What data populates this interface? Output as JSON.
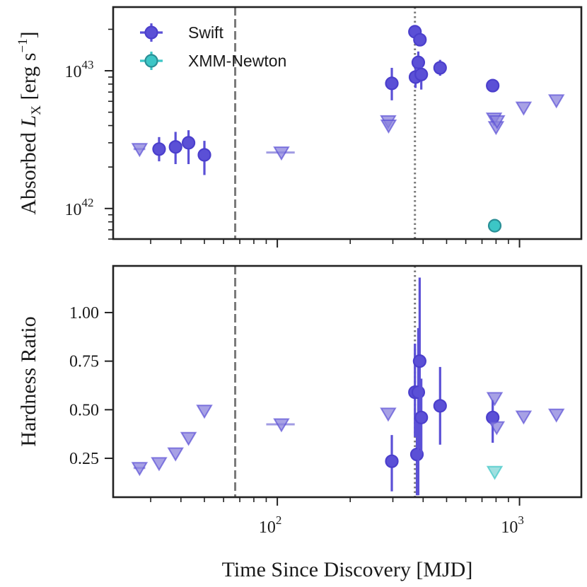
{
  "colors": {
    "swift": "#4b3fcc",
    "swift_fill": "#5b50d6",
    "xmm": "#3cc6c6",
    "xmm_edge": "#2a8f96",
    "limit_fill": "#8a82dc",
    "xmm_limit_fill": "#7fd6d6",
    "axes": "#222222",
    "vline": "#7a7a7a"
  },
  "chart_data": [
    {
      "panel": "top",
      "type": "scatter",
      "ylabel_main": "Absorbed ",
      "ylabel_sym": "L",
      "ylabel_sub": "X",
      "ylabel_unit": " [erg s",
      "ylabel_exp": "−1",
      "ylabel_close": "]",
      "yscale": "log",
      "xscale": "log",
      "xlim": [
        21,
        1800
      ],
      "ylim": [
        6e+41,
        2.9e+43
      ],
      "yticks": [
        {
          "value": 1e+42,
          "base": "10",
          "exp": "42"
        },
        {
          "value": 1e+43,
          "base": "10",
          "exp": "43"
        }
      ],
      "legend": {
        "placement": "top-left",
        "entries": [
          "Swift",
          "XMM-Newton"
        ]
      },
      "vlines": [
        {
          "x": 67,
          "style": "dashed"
        },
        {
          "x": 370,
          "style": "dotted"
        }
      ],
      "series": [
        {
          "name": "Swift",
          "kind": "detection",
          "points": [
            {
              "x": 32.5,
              "y": 2.7e+42,
              "ylo": 2.2e+42,
              "yhi": 3.3e+42
            },
            {
              "x": 38,
              "y": 2.8e+42,
              "ylo": 2.1e+42,
              "yhi": 3.6e+42
            },
            {
              "x": 43,
              "y": 3e+42,
              "ylo": 2.1e+42,
              "yhi": 3.7e+42
            },
            {
              "x": 50,
              "y": 2.45e+42,
              "ylo": 1.75e+42,
              "yhi": 3.1e+42
            },
            {
              "x": 297,
              "y": 8.1e+42,
              "ylo": 6.1e+42,
              "yhi": 1.05e+43
            },
            {
              "x": 370,
              "y": 1.92e+43,
              "ylo": 1.82e+43,
              "yhi": 2.03e+43
            },
            {
              "x": 372,
              "y": 9e+42,
              "ylo": 7.5e+42,
              "yhi": 1.08e+43
            },
            {
              "x": 382,
              "y": 1.15e+43,
              "ylo": 9.5e+42,
              "yhi": 1.38e+43
            },
            {
              "x": 388,
              "y": 1.68e+43,
              "ylo": 1.55e+43,
              "yhi": 1.82e+43
            },
            {
              "x": 393,
              "y": 9.4e+42,
              "ylo": 7.3e+42,
              "yhi": 1.1e+43
            },
            {
              "x": 470,
              "y": 1.05e+43,
              "ylo": 9.2e+42,
              "yhi": 1.2e+43
            },
            {
              "x": 775,
              "y": 7.8e+42,
              "ylo": 7.2e+42,
              "yhi": 8.4e+42
            }
          ]
        },
        {
          "name": "Swift",
          "kind": "upper-limit",
          "points": [
            {
              "x": 27,
              "y": 2.7e+42,
              "xlo": 25.5,
              "xhi": 28.5
            },
            {
              "x": 104,
              "y": 2.55e+42,
              "xlo": 90,
              "xhi": 118
            },
            {
              "x": 287,
              "y": 4.3e+42
            },
            {
              "x": 288,
              "y": 4e+42
            },
            {
              "x": 785,
              "y": 4.5e+42
            },
            {
              "x": 800,
              "y": 3.9e+42
            },
            {
              "x": 808,
              "y": 4.3e+42
            },
            {
              "x": 1040,
              "y": 5.4e+42
            },
            {
              "x": 1420,
              "y": 6.1e+42
            }
          ]
        },
        {
          "name": "XMM-Newton",
          "kind": "detection",
          "points": [
            {
              "x": 790,
              "y": 7.5e+41
            }
          ]
        }
      ]
    },
    {
      "panel": "bottom",
      "type": "scatter",
      "ylabel": "Hardness Ratio",
      "xlabel": "Time Since Discovery [MJD]",
      "xscale": "log",
      "xlim": [
        21,
        1800
      ],
      "ylim": [
        0.05,
        1.24
      ],
      "yticks": [
        {
          "value": 0.25,
          "label": "0.25"
        },
        {
          "value": 0.5,
          "label": "0.50"
        },
        {
          "value": 0.75,
          "label": "0.75"
        },
        {
          "value": 1.0,
          "label": "1.00"
        }
      ],
      "xticks": [
        {
          "value": 100,
          "base": "10",
          "exp": "2"
        },
        {
          "value": 1000,
          "base": "10",
          "exp": "3"
        }
      ],
      "vlines": [
        {
          "x": 67,
          "style": "dashed"
        },
        {
          "x": 370,
          "style": "dotted"
        }
      ],
      "series": [
        {
          "name": "Swift",
          "kind": "detection",
          "points": [
            {
              "x": 297,
              "y": 0.235,
              "ylo": 0.08,
              "yhi": 0.37
            },
            {
              "x": 370,
              "y": 0.59,
              "ylo": 0.36,
              "yhi": 0.84
            },
            {
              "x": 377,
              "y": 0.27,
              "ylo": 0.06,
              "yhi": 0.47
            },
            {
              "x": 382,
              "y": 0.59,
              "ylo": 0.06,
              "yhi": 0.92
            },
            {
              "x": 387,
              "y": 0.75,
              "ylo": 0.3,
              "yhi": 1.18
            },
            {
              "x": 393,
              "y": 0.46,
              "ylo": 0.27,
              "yhi": 0.66
            },
            {
              "x": 470,
              "y": 0.52,
              "ylo": 0.32,
              "yhi": 0.72
            },
            {
              "x": 775,
              "y": 0.46,
              "ylo": 0.33,
              "yhi": 0.55
            }
          ]
        },
        {
          "name": "Swift",
          "kind": "upper-limit",
          "points": [
            {
              "x": 27,
              "y": 0.2,
              "xlo": 25.5,
              "xhi": 28.5
            },
            {
              "x": 32.5,
              "y": 0.225
            },
            {
              "x": 38,
              "y": 0.275
            },
            {
              "x": 43,
              "y": 0.355
            },
            {
              "x": 50,
              "y": 0.495
            },
            {
              "x": 104,
              "y": 0.425,
              "xlo": 90,
              "xhi": 118
            },
            {
              "x": 287,
              "y": 0.48
            },
            {
              "x": 790,
              "y": 0.56
            },
            {
              "x": 805,
              "y": 0.41
            },
            {
              "x": 1040,
              "y": 0.465
            },
            {
              "x": 1420,
              "y": 0.475
            }
          ]
        },
        {
          "name": "XMM-Newton",
          "kind": "upper-limit",
          "points": [
            {
              "x": 790,
              "y": 0.18
            }
          ]
        }
      ]
    }
  ]
}
